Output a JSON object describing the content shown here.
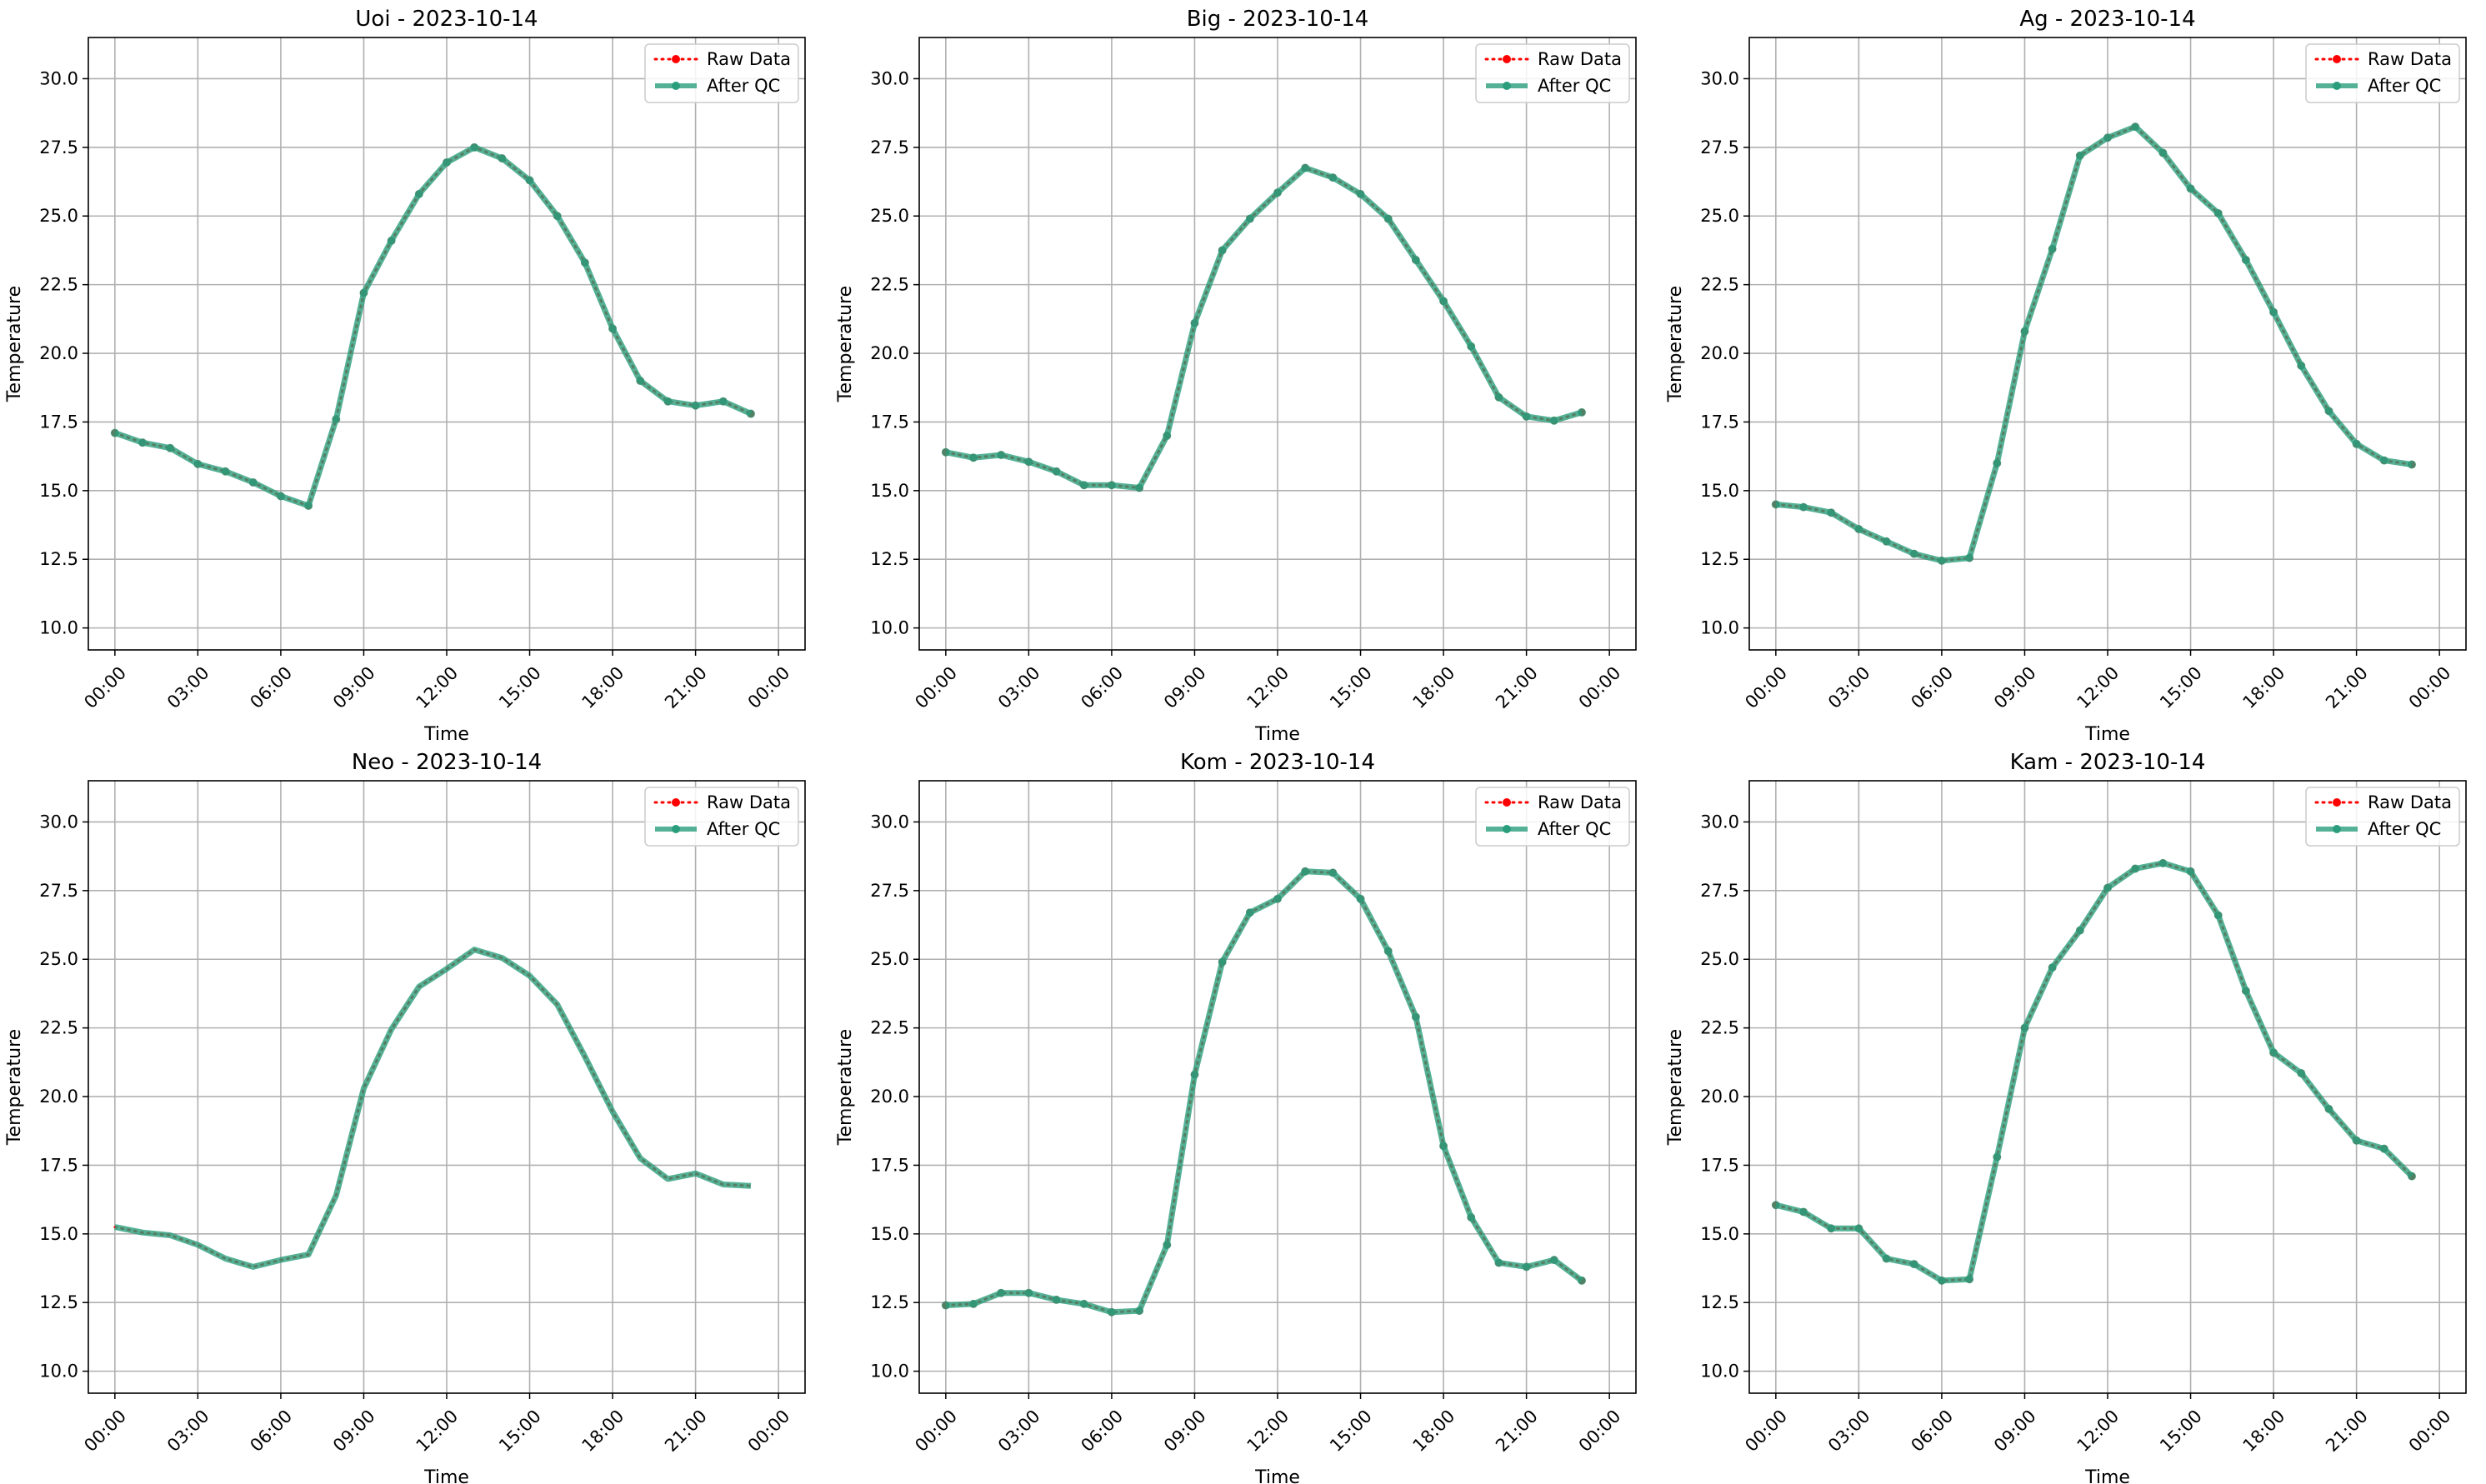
{
  "chart_data": [
    {
      "type": "line",
      "title": "Uoi - 2023-10-14",
      "xlabel": "Time",
      "ylabel": "Temperature",
      "x_ticks": [
        "00:00",
        "03:00",
        "06:00",
        "09:00",
        "12:00",
        "15:00",
        "18:00",
        "21:00",
        "00:00"
      ],
      "y_ticks": [
        "10.0",
        "12.5",
        "15.0",
        "17.5",
        "20.0",
        "22.5",
        "25.0",
        "27.5",
        "30.0"
      ],
      "ylim": [
        9.2,
        31.5
      ],
      "grid": true,
      "legend_position": "top-right",
      "series": [
        {
          "name": "Raw Data",
          "color": "#ff0000",
          "style": "dotted",
          "show_markers": true,
          "values": [
            17.1,
            16.75,
            16.55,
            15.97,
            15.7,
            15.3,
            14.8,
            14.45,
            17.6,
            22.2,
            24.1,
            25.8,
            26.95,
            27.5,
            27.1,
            26.3,
            25.0,
            23.3,
            20.9,
            19.0,
            18.25,
            18.1,
            18.25,
            17.8
          ]
        },
        {
          "name": "After QC",
          "color": "#2a9d7c",
          "style": "solid",
          "show_markers": true,
          "values": [
            17.1,
            16.75,
            16.55,
            15.97,
            15.7,
            15.3,
            14.8,
            14.45,
            17.6,
            22.2,
            24.1,
            25.8,
            26.95,
            27.5,
            27.1,
            26.3,
            25.0,
            23.3,
            20.9,
            19.0,
            18.25,
            18.1,
            18.25,
            17.8
          ]
        }
      ]
    },
    {
      "type": "line",
      "title": "Big - 2023-10-14",
      "xlabel": "Time",
      "ylabel": "Temperature",
      "x_ticks": [
        "00:00",
        "03:00",
        "06:00",
        "09:00",
        "12:00",
        "15:00",
        "18:00",
        "21:00",
        "00:00"
      ],
      "y_ticks": [
        "10.0",
        "12.5",
        "15.0",
        "17.5",
        "20.0",
        "22.5",
        "25.0",
        "27.5",
        "30.0"
      ],
      "ylim": [
        9.2,
        31.5
      ],
      "grid": true,
      "legend_position": "top-right",
      "series": [
        {
          "name": "Raw Data",
          "color": "#ff0000",
          "style": "dotted",
          "show_markers": true,
          "values": [
            16.4,
            16.2,
            16.3,
            16.05,
            15.7,
            15.2,
            15.2,
            15.1,
            17.0,
            21.1,
            23.75,
            24.9,
            25.85,
            26.75,
            26.4,
            25.8,
            24.9,
            23.4,
            21.9,
            20.25,
            18.4,
            17.7,
            17.55,
            17.85
          ]
        },
        {
          "name": "After QC",
          "color": "#2a9d7c",
          "style": "solid",
          "show_markers": true,
          "values": [
            16.4,
            16.2,
            16.3,
            16.05,
            15.7,
            15.2,
            15.2,
            15.1,
            17.0,
            21.1,
            23.75,
            24.9,
            25.85,
            26.75,
            26.4,
            25.8,
            24.9,
            23.4,
            21.9,
            20.25,
            18.4,
            17.7,
            17.55,
            17.85
          ]
        }
      ]
    },
    {
      "type": "line",
      "title": "Ag - 2023-10-14",
      "xlabel": "Time",
      "ylabel": "Temperature",
      "x_ticks": [
        "00:00",
        "03:00",
        "06:00",
        "09:00",
        "12:00",
        "15:00",
        "18:00",
        "21:00",
        "00:00"
      ],
      "y_ticks": [
        "10.0",
        "12.5",
        "15.0",
        "17.5",
        "20.0",
        "22.5",
        "25.0",
        "27.5",
        "30.0"
      ],
      "ylim": [
        9.2,
        31.5
      ],
      "grid": true,
      "legend_position": "top-right",
      "series": [
        {
          "name": "Raw Data",
          "color": "#ff0000",
          "style": "dotted",
          "show_markers": true,
          "values": [
            14.5,
            14.4,
            14.2,
            13.6,
            13.15,
            12.7,
            12.45,
            12.55,
            16.0,
            20.8,
            23.8,
            27.2,
            27.85,
            28.25,
            27.3,
            26.0,
            25.1,
            23.4,
            21.5,
            19.55,
            17.9,
            16.7,
            16.1,
            15.95
          ]
        },
        {
          "name": "After QC",
          "color": "#2a9d7c",
          "style": "solid",
          "show_markers": true,
          "values": [
            14.5,
            14.4,
            14.2,
            13.6,
            13.15,
            12.7,
            12.45,
            12.55,
            16.0,
            20.8,
            23.8,
            27.2,
            27.85,
            28.25,
            27.3,
            26.0,
            25.1,
            23.4,
            21.5,
            19.55,
            17.9,
            16.7,
            16.1,
            15.95
          ]
        }
      ]
    },
    {
      "type": "line",
      "title": "Neo - 2023-10-14",
      "xlabel": "Time",
      "ylabel": "Temperature",
      "x_ticks": [
        "00:00",
        "03:00",
        "06:00",
        "09:00",
        "12:00",
        "15:00",
        "18:00",
        "21:00",
        "00:00"
      ],
      "y_ticks": [
        "10.0",
        "12.5",
        "15.0",
        "17.5",
        "20.0",
        "22.5",
        "25.0",
        "27.5",
        "30.0"
      ],
      "ylim": [
        9.2,
        31.5
      ],
      "grid": true,
      "legend_position": "top-right",
      "series": [
        {
          "name": "Raw Data",
          "color": "#ff0000",
          "style": "dotted",
          "show_markers": false,
          "values": [
            15.25,
            15.05,
            14.95,
            14.6,
            14.1,
            13.8,
            14.05,
            14.25,
            16.4,
            20.3,
            22.45,
            24.0,
            24.65,
            25.35,
            25.05,
            24.4,
            23.35,
            21.45,
            19.45,
            17.75,
            17.0,
            17.2,
            16.8,
            16.75
          ]
        },
        {
          "name": "After QC",
          "color": "#2a9d7c",
          "style": "solid",
          "show_markers": false,
          "values": [
            15.25,
            15.05,
            14.95,
            14.6,
            14.1,
            13.8,
            14.05,
            14.25,
            16.4,
            20.3,
            22.45,
            24.0,
            24.65,
            25.35,
            25.05,
            24.4,
            23.35,
            21.45,
            19.45,
            17.75,
            17.0,
            17.2,
            16.8,
            16.75
          ]
        }
      ]
    },
    {
      "type": "line",
      "title": "Kom - 2023-10-14",
      "xlabel": "Time",
      "ylabel": "Temperature",
      "x_ticks": [
        "00:00",
        "03:00",
        "06:00",
        "09:00",
        "12:00",
        "15:00",
        "18:00",
        "21:00",
        "00:00"
      ],
      "y_ticks": [
        "10.0",
        "12.5",
        "15.0",
        "17.5",
        "20.0",
        "22.5",
        "25.0",
        "27.5",
        "30.0"
      ],
      "ylim": [
        9.2,
        31.5
      ],
      "grid": true,
      "legend_position": "top-right",
      "series": [
        {
          "name": "Raw Data",
          "color": "#ff0000",
          "style": "dotted",
          "show_markers": true,
          "values": [
            12.4,
            12.45,
            12.85,
            12.85,
            12.6,
            12.45,
            12.15,
            12.2,
            14.6,
            20.8,
            24.9,
            26.7,
            27.2,
            28.2,
            28.15,
            27.2,
            25.3,
            22.9,
            18.2,
            15.6,
            13.95,
            13.8,
            14.05,
            13.3
          ]
        },
        {
          "name": "After QC",
          "color": "#2a9d7c",
          "style": "solid",
          "show_markers": true,
          "values": [
            12.4,
            12.45,
            12.85,
            12.85,
            12.6,
            12.45,
            12.15,
            12.2,
            14.6,
            20.8,
            24.9,
            26.7,
            27.2,
            28.2,
            28.15,
            27.2,
            25.3,
            22.9,
            18.2,
            15.6,
            13.95,
            13.8,
            14.05,
            13.3
          ]
        }
      ]
    },
    {
      "type": "line",
      "title": "Kam - 2023-10-14",
      "xlabel": "Time",
      "ylabel": "Temperature",
      "x_ticks": [
        "00:00",
        "03:00",
        "06:00",
        "09:00",
        "12:00",
        "15:00",
        "18:00",
        "21:00",
        "00:00"
      ],
      "y_ticks": [
        "10.0",
        "12.5",
        "15.0",
        "17.5",
        "20.0",
        "22.5",
        "25.0",
        "27.5",
        "30.0"
      ],
      "ylim": [
        9.2,
        31.5
      ],
      "grid": true,
      "legend_position": "top-right",
      "series": [
        {
          "name": "Raw Data",
          "color": "#ff0000",
          "style": "dotted",
          "show_markers": true,
          "values": [
            16.05,
            15.8,
            15.2,
            15.2,
            14.1,
            13.9,
            13.3,
            13.35,
            17.8,
            22.5,
            24.7,
            26.05,
            27.6,
            28.3,
            28.5,
            28.2,
            26.6,
            23.85,
            21.6,
            20.85,
            19.55,
            18.4,
            18.1,
            17.1
          ]
        },
        {
          "name": "After QC",
          "color": "#2a9d7c",
          "style": "solid",
          "show_markers": true,
          "values": [
            16.05,
            15.8,
            15.2,
            15.2,
            14.1,
            13.9,
            13.3,
            13.35,
            17.8,
            22.5,
            24.7,
            26.05,
            27.6,
            28.3,
            28.5,
            28.2,
            26.6,
            23.85,
            21.6,
            20.85,
            19.55,
            18.4,
            18.1,
            17.1
          ]
        }
      ]
    }
  ]
}
